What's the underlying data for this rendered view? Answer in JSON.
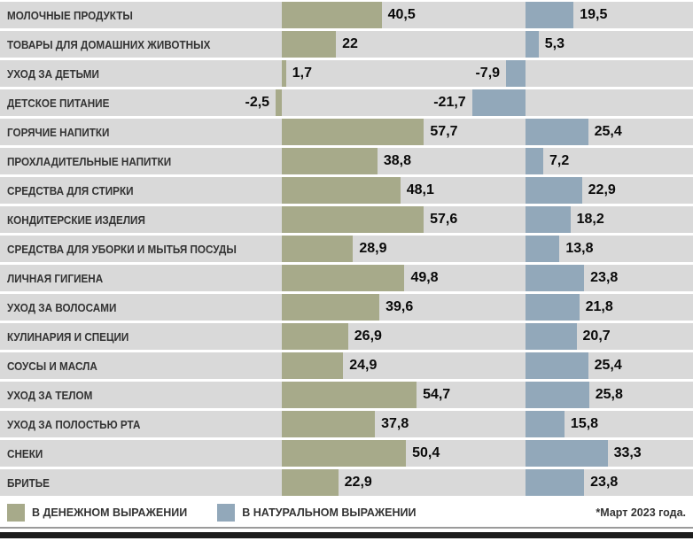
{
  "chart_data": {
    "type": "bar",
    "orientation": "horizontal",
    "title": "",
    "unit": "percent_growth",
    "row_background": "#d9d9d9",
    "categories": [
      "МОЛОЧНЫЕ ПРОДУКТЫ",
      "ТОВАРЫ ДЛЯ ДОМАШНИХ ЖИВОТНЫХ",
      "УХОД ЗА ДЕТЬМИ",
      "ДЕТСКОЕ ПИТАНИЕ",
      "ГОРЯЧИЕ НАПИТКИ",
      "ПРОХЛАДИТЕЛЬНЫЕ НАПИТКИ",
      "СРЕДСТВА ДЛЯ СТИРКИ",
      "КОНДИТЕРСКИЕ ИЗДЕЛИЯ",
      "СРЕДСТВА ДЛЯ УБОРКИ И МЫТЬЯ ПОСУДЫ",
      "ЛИЧНАЯ ГИГИЕНА",
      "УХОД ЗА ВОЛОСАМИ",
      "КУЛИНАРИЯ И СПЕЦИИ",
      "СОУСЫ И МАСЛА",
      "УХОД ЗА ТЕЛОМ",
      "УХОД ЗА ПОЛОСТЬЮ РТА",
      "СНЕКИ",
      "БРИТЬЕ"
    ],
    "series": [
      {
        "name": "В ДЕНЕЖНОМ ВЫРАЖЕНИИ",
        "color": "#a7aa8a",
        "values": [
          40.5,
          22,
          1.7,
          -2.5,
          57.7,
          38.8,
          48.1,
          57.6,
          28.9,
          49.8,
          39.6,
          26.9,
          24.9,
          54.7,
          37.8,
          50.4,
          22.9
        ],
        "labels": [
          "40,5",
          "22",
          "1,7",
          "-2,5",
          "57,7",
          "38,8",
          "48,1",
          "57,6",
          "28,9",
          "49,8",
          "39,6",
          "26,9",
          "24,9",
          "54,7",
          "37,8",
          "50,4",
          "22,9"
        ]
      },
      {
        "name": "В НАТУРАЛЬНОМ ВЫРАЖЕНИИ",
        "color": "#92a8ba",
        "values": [
          19.5,
          5.3,
          -7.9,
          -21.7,
          25.4,
          7.2,
          22.9,
          18.2,
          13.8,
          23.8,
          21.8,
          20.7,
          25.4,
          25.8,
          15.8,
          33.3,
          23.8
        ],
        "labels": [
          "19,5",
          "5,3",
          "-7,9",
          "-21,7",
          "25,4",
          "7,2",
          "22,9",
          "18,2",
          "13,8",
          "23,8",
          "21,8",
          "20,7",
          "25,4",
          "25,8",
          "15,8",
          "33,3",
          "23,8"
        ]
      }
    ],
    "axis_baselines": {
      "money_x": 318,
      "volume_x": 593
    },
    "legend_position": "bottom",
    "grid": false
  },
  "legend": {
    "items": [
      {
        "label": "В ДЕНЕЖНОМ ВЫРАЖЕНИИ",
        "color": "#a7aa8a"
      },
      {
        "label": "В НАТУРАЛЬНОМ ВЫРАЖЕНИИ",
        "color": "#92a8ba"
      }
    ],
    "footnote": "*Март 2023 года."
  }
}
